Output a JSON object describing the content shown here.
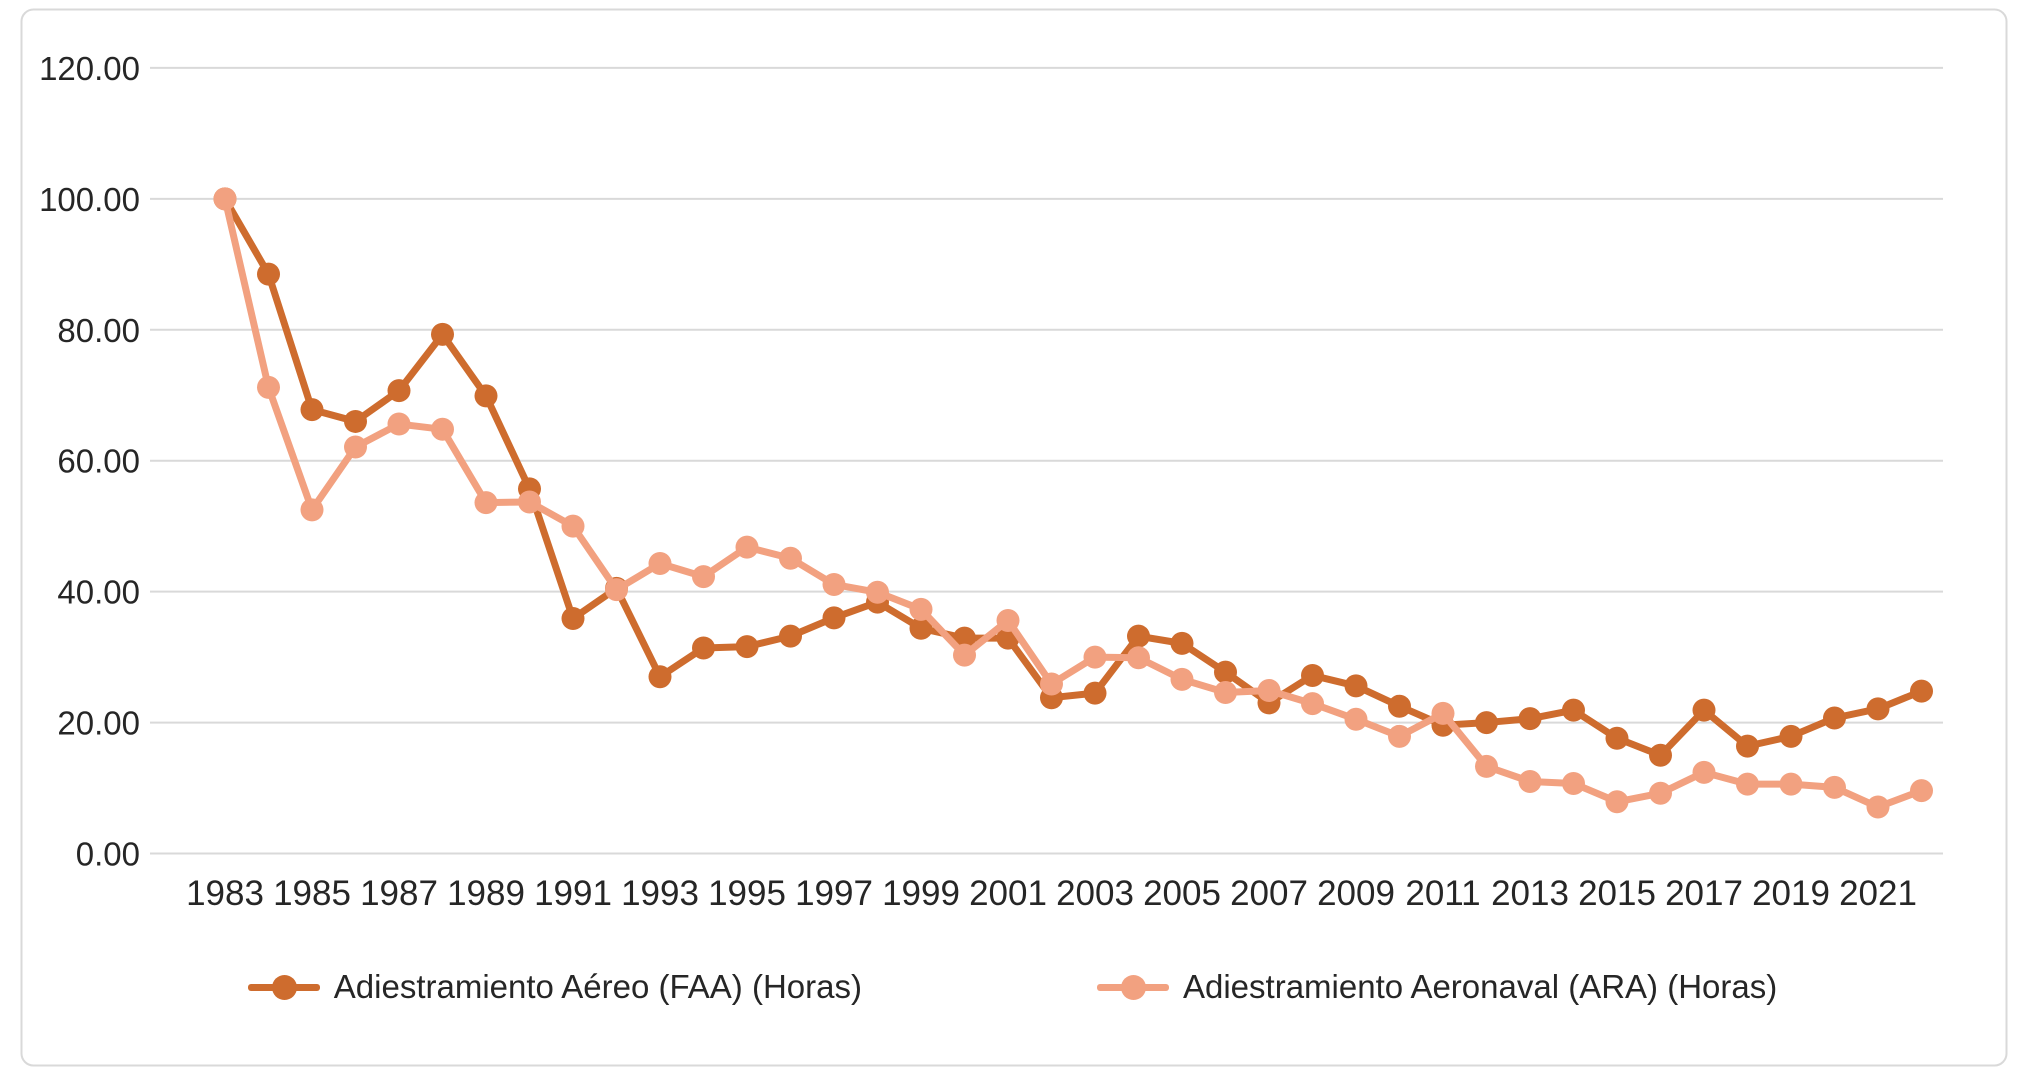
{
  "chart_data": {
    "type": "line",
    "title": "",
    "xlabel": "",
    "ylabel": "",
    "x": [
      1983,
      1984,
      1985,
      1986,
      1987,
      1988,
      1989,
      1990,
      1991,
      1992,
      1993,
      1994,
      1995,
      1996,
      1997,
      1998,
      1999,
      2000,
      2001,
      2002,
      2003,
      2004,
      2005,
      2006,
      2007,
      2008,
      2009,
      2010,
      2011,
      2012,
      2013,
      2014,
      2015,
      2016,
      2017,
      2018,
      2019,
      2020,
      2021,
      2022
    ],
    "x_tick_labels": [
      "1983",
      "1985",
      "1987",
      "1989",
      "1991",
      "1993",
      "1995",
      "1997",
      "1999",
      "2001",
      "2003",
      "2005",
      "2007",
      "2009",
      "2011",
      "2013",
      "2015",
      "2017",
      "2019",
      "2021"
    ],
    "y_tick_labels": [
      "0.00",
      "20.00",
      "40.00",
      "60.00",
      "80.00",
      "100.00",
      "120.00"
    ],
    "ylim": [
      0,
      120
    ],
    "y_tick_step": 20,
    "grid": true,
    "legend_position": "bottom",
    "series": [
      {
        "name": "Adiestramiento Aéreo (FAA) (Horas)",
        "color": "#CE6C2E",
        "values": [
          100.0,
          88.5,
          67.8,
          66.0,
          70.7,
          79.3,
          69.9,
          55.7,
          35.9,
          40.5,
          27.0,
          31.4,
          31.6,
          33.2,
          36.0,
          38.4,
          34.4,
          32.9,
          32.9,
          23.8,
          24.5,
          33.2,
          32.1,
          27.7,
          23.0,
          27.2,
          25.6,
          22.5,
          19.6,
          20.0,
          20.6,
          21.9,
          17.6,
          15.0,
          21.9,
          16.4,
          17.9,
          20.7,
          22.1,
          24.8
        ]
      },
      {
        "name": "Adiestramiento Aeronaval (ARA) (Horas)",
        "color": "#F2A180",
        "values": [
          100.0,
          71.2,
          52.5,
          62.1,
          65.6,
          64.8,
          53.6,
          53.7,
          50.0,
          40.3,
          44.3,
          42.3,
          46.8,
          45.1,
          41.1,
          39.9,
          37.3,
          30.3,
          35.6,
          25.9,
          30.0,
          29.9,
          26.6,
          24.6,
          24.9,
          22.9,
          20.5,
          17.9,
          21.4,
          13.3,
          11.0,
          10.7,
          7.9,
          9.2,
          12.4,
          10.6,
          10.6,
          10.1,
          7.1,
          9.6
        ]
      }
    ],
    "colors": {
      "gridline": "#D9D9D9",
      "frame_border": "#D9D9D9",
      "axis_text": "#262626",
      "background": "#FFFFFF"
    }
  }
}
